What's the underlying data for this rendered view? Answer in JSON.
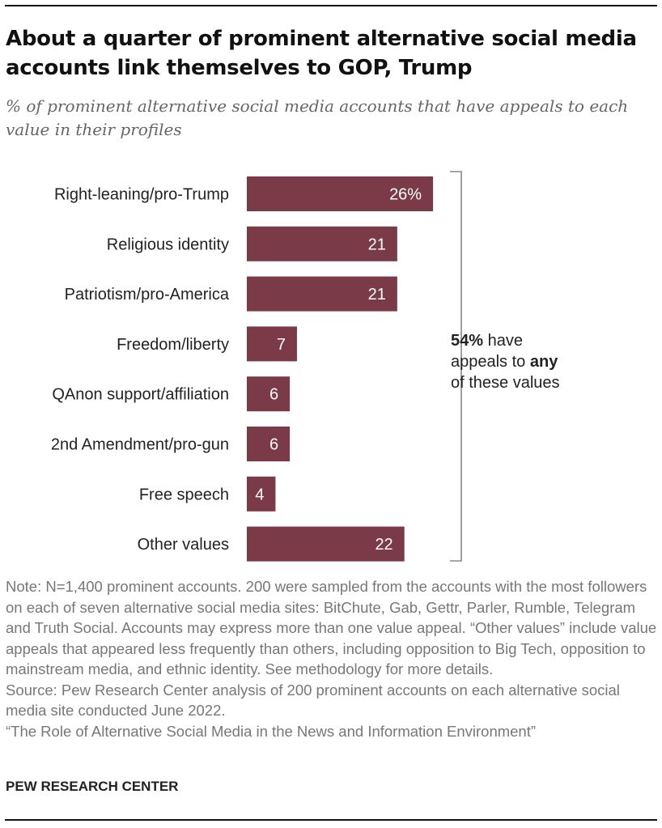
{
  "header": {
    "title": "About a quarter of prominent alternative social media accounts link themselves to GOP, Trump",
    "subtitle": "% of prominent alternative social media accounts that have appeals to each value in their profiles"
  },
  "chart_data": {
    "type": "bar",
    "orientation": "horizontal",
    "categories": [
      "Right-leaning/pro-Trump",
      "Religious identity",
      "Patriotism/pro-America",
      "Freedom/liberty",
      "QAnon support/affiliation",
      "2nd Amendment/pro-gun",
      "Free speech",
      "Other values"
    ],
    "values": [
      26,
      21,
      21,
      7,
      6,
      6,
      4,
      22
    ],
    "value_labels": [
      "26%",
      "21",
      "21",
      "7",
      "6",
      "6",
      "4",
      "22"
    ],
    "bar_color": "#7a3a47",
    "xlim": [
      0,
      30
    ],
    "grid": false,
    "annotation": {
      "bold_prefix": "54%",
      "line1_rest": " have",
      "line2_prefix": "appeals to ",
      "line2_bold": "any",
      "line3": "of these values"
    }
  },
  "footer": {
    "note": "Note: N=1,400 prominent accounts. 200 were sampled from the accounts with the most followers on each of seven alternative social media sites: BitChute, Gab, Gettr, Parler, Rumble, Telegram and Truth Social. Accounts may express more than one value appeal. “Other values” include value appeals that appeared less frequently than others, including opposition to Big Tech, opposition to mainstream media, and ethnic identity. See methodology for more details.",
    "source": "Source: Pew Research Center analysis of 200 prominent accounts on each alternative social media site conducted June 2022.",
    "report": "“The Role of Alternative Social Media in the News and Information Environment”",
    "brand": "PEW RESEARCH CENTER"
  }
}
